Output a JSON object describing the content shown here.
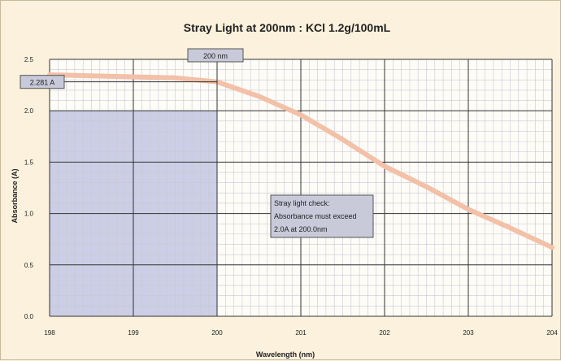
{
  "chart_data": {
    "type": "line",
    "title": "Stray Light at 200nm : KCl  1.2g/100mL",
    "xlabel": "Wavelength (nm)",
    "ylabel": "Absorbance (A)",
    "xlim": [
      198,
      204
    ],
    "ylim": [
      0,
      2.5
    ],
    "x_ticks": [
      "198",
      "199",
      "200",
      "201",
      "202",
      "203",
      "204"
    ],
    "y_ticks": [
      "0.0",
      "0.5",
      "1.0",
      "1.5",
      "2.0",
      "2.5"
    ],
    "grid": true,
    "series": [
      {
        "color": "#f3c0a8",
        "x": [
          198.0,
          198.5,
          199.0,
          199.5,
          200.0,
          200.5,
          201.0,
          201.5,
          202.0,
          202.5,
          203.0,
          203.5,
          204.0
        ],
        "y": [
          2.35,
          2.34,
          2.33,
          2.32,
          2.281,
          2.14,
          1.96,
          1.72,
          1.46,
          1.26,
          1.04,
          0.86,
          0.67
        ]
      }
    ],
    "shaded_region": {
      "x": [
        198,
        200
      ],
      "y": [
        0,
        2.0
      ],
      "color": "#c2c5e2"
    },
    "annotations": {
      "marker_label": "200 nm",
      "value_label": "2.281 A",
      "note_lines": [
        "Stray light check:",
        "Absorbance must exceed",
        "2.0A at 200.0nm"
      ]
    }
  }
}
